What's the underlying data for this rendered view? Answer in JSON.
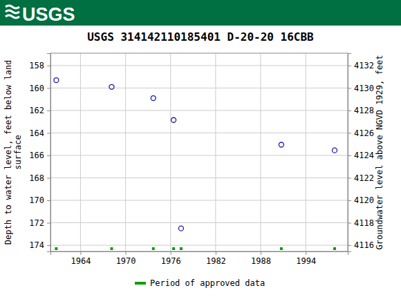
{
  "header": {
    "logo": "USGS"
  },
  "chart_data": {
    "type": "scatter",
    "title": "USGS 314142110185401 D-20-20 16CBB",
    "ylabel": [
      "Depth to water level, feet below land",
      "surface"
    ],
    "y2label": "Groundwater level above NGVD 1929, feet",
    "x": [
      1960.77,
      1968.15,
      1973.7,
      1976.4,
      1977.4,
      1990.75,
      1997.85
    ],
    "xlim": [
      1960.0,
      1999.6
    ],
    "xticks": [
      1964,
      1970,
      1976,
      1982,
      1988,
      1994
    ],
    "ylim": [
      156.9,
      174.55
    ],
    "yticks": [
      158,
      160,
      162,
      164,
      166,
      168,
      170,
      172,
      174
    ],
    "y2lim": [
      4133.1,
      4115.45
    ],
    "y2ticks": [
      4116,
      4118,
      4120,
      4122,
      4124,
      4126,
      4128,
      4130,
      4132
    ],
    "grid": true,
    "series": [
      {
        "values": [
          159.3,
          159.9,
          160.9,
          162.85,
          172.5,
          165.05,
          165.55
        ],
        "color": "#1a1aa6",
        "marker": "open-circle"
      }
    ],
    "approved": {
      "name": "Period of approved data",
      "color": "#00a000",
      "x": [
        1960.77,
        1968.15,
        1973.7,
        1976.4,
        1977.4,
        1990.75,
        1997.85
      ]
    }
  }
}
